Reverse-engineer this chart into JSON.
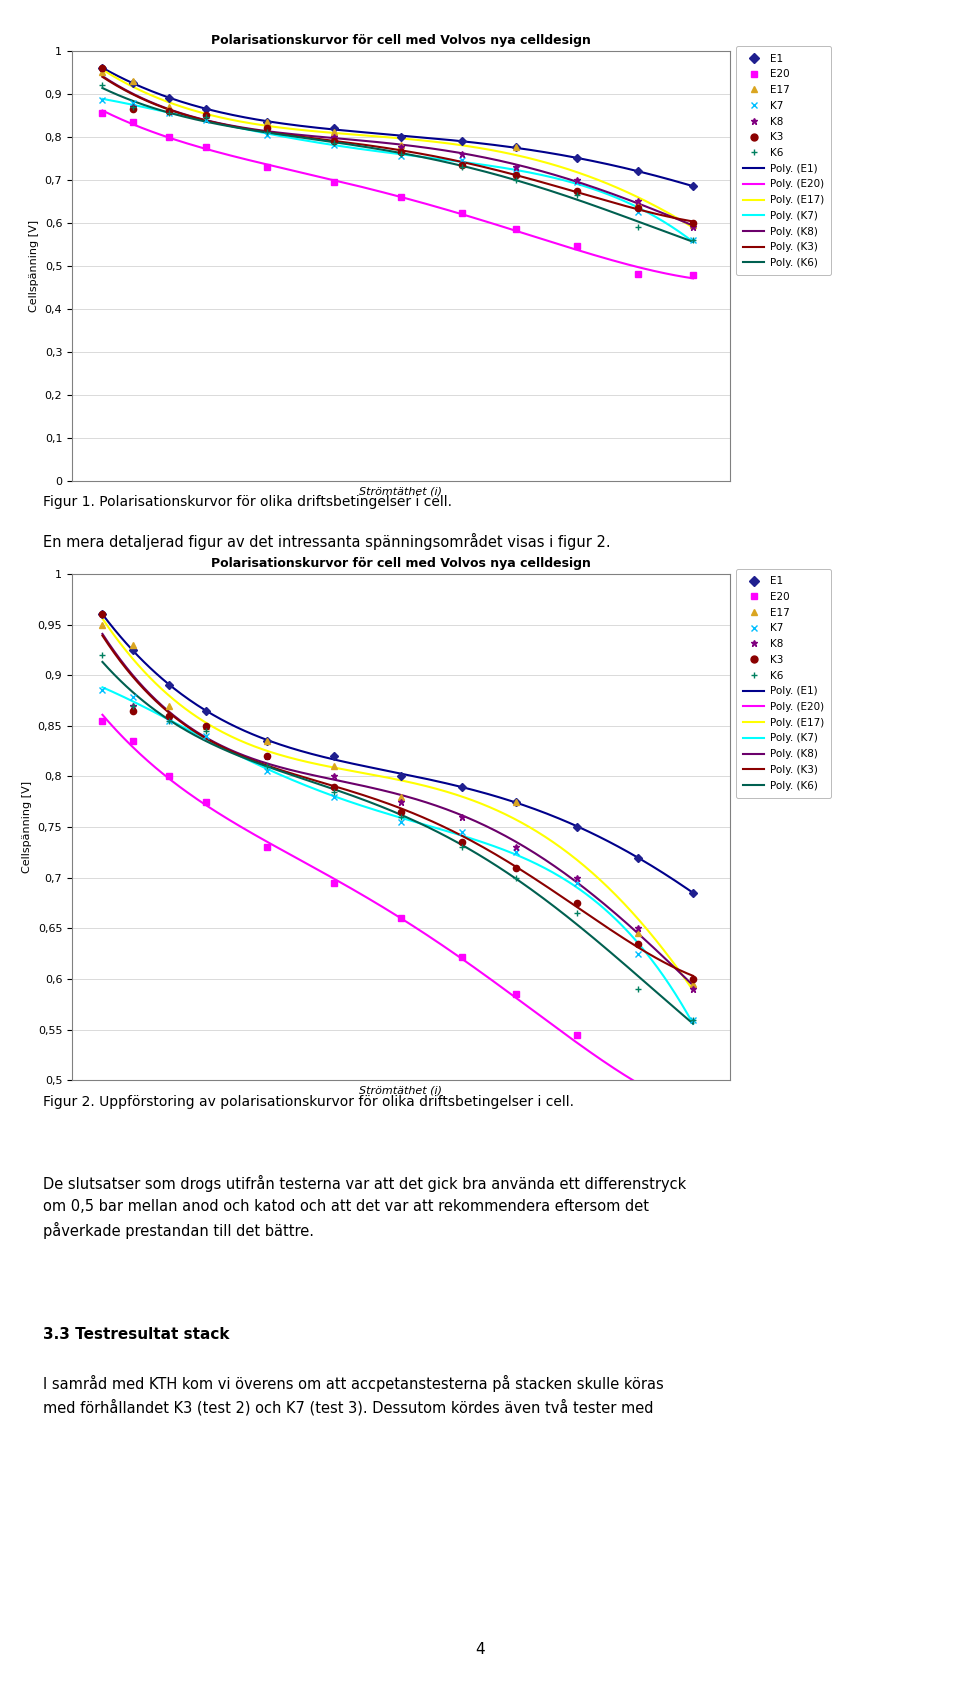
{
  "title": "Polarisationskurvor för cell med Volvos nya celldesign",
  "xlabel": "Strömtäthet (i)",
  "ylabel": "Cellspänning [V]",
  "fig1_caption": "Figur 1. Polarisationskurvor för olika driftsbetingelser i cell.",
  "fig2_caption": "Figur 2. Uppförstoring av polarisationskurvor för olika driftsbetingelser i cell.",
  "text1": "En mera detaljerad figur av det intressanta spänningsområdet visas i figur 2.",
  "text2": "De slutsatser som drogs utifrån testerna var att det gick bra använda ett differenstryck\nom 0,5 bar mellan anod och katod och att det var att rekommendera eftersom det\npåverkade prestandan till det bättre.",
  "text3_bold": "3.3 Testresultat stack",
  "text4": "I samråd med KTH kom vi överens om att accpetanstesterna på stacken skulle köras\nmed förhållandet K3 (test 2) och K7 (test 3). Dessutom kördes även två tester med",
  "series_order": [
    "E1",
    "E20",
    "E17",
    "K7",
    "K8",
    "K3",
    "K6"
  ],
  "markers": {
    "E1": "D",
    "E20": "s",
    "E17": "^",
    "K7": "x",
    "K8": "*",
    "K3": "o",
    "K6": "+"
  },
  "marker_colors": {
    "E1": "#1F1F8F",
    "E20": "#FF00FF",
    "E17": "#DAA520",
    "K7": "#00BFFF",
    "K8": "#800080",
    "K3": "#8B0000",
    "K6": "#008060"
  },
  "poly_colors": {
    "E1": "#00008B",
    "E20": "#FF00FF",
    "E17": "#FFFF00",
    "K7": "#00FFFF",
    "K8": "#6B006B",
    "K3": "#8B0000",
    "K6": "#006050"
  },
  "poly_labels": {
    "E1": "Poly. (E1)",
    "E20": "Poly. (E20)",
    "E17": "Poly. (E17)",
    "K7": "Poly. (K7)",
    "K8": "Poly. (K8)",
    "K3": "Poly. (K3)",
    "K6": "Poly. (K6)"
  },
  "x_data": {
    "E1": [
      0.05,
      0.1,
      0.16,
      0.22,
      0.32,
      0.43,
      0.54,
      0.64,
      0.73,
      0.83,
      0.93,
      1.02
    ],
    "E20": [
      0.05,
      0.1,
      0.16,
      0.22,
      0.32,
      0.43,
      0.54,
      0.64,
      0.73,
      0.83,
      0.93,
      1.02
    ],
    "E17": [
      0.05,
      0.1,
      0.16,
      0.22,
      0.32,
      0.43,
      0.54,
      0.73,
      0.93,
      1.02
    ],
    "K7": [
      0.05,
      0.1,
      0.16,
      0.22,
      0.32,
      0.43,
      0.54,
      0.64,
      0.73,
      0.83,
      0.93,
      1.02
    ],
    "K8": [
      0.05,
      0.1,
      0.16,
      0.22,
      0.32,
      0.43,
      0.54,
      0.64,
      0.73,
      0.83,
      0.93,
      1.02
    ],
    "K3": [
      0.05,
      0.1,
      0.16,
      0.22,
      0.32,
      0.43,
      0.54,
      0.64,
      0.73,
      0.83,
      0.93,
      1.02
    ],
    "K6": [
      0.05,
      0.1,
      0.16,
      0.22,
      0.32,
      0.43,
      0.54,
      0.64,
      0.73,
      0.83,
      0.93,
      1.02
    ]
  },
  "y_data": {
    "E1": [
      0.96,
      0.925,
      0.89,
      0.865,
      0.835,
      0.82,
      0.8,
      0.79,
      0.775,
      0.75,
      0.72,
      0.685
    ],
    "E20": [
      0.855,
      0.835,
      0.8,
      0.775,
      0.73,
      0.695,
      0.66,
      0.622,
      0.585,
      0.545,
      0.48,
      0.478
    ],
    "E17": [
      0.95,
      0.93,
      0.87,
      0.85,
      0.835,
      0.81,
      0.78,
      0.775,
      0.645,
      0.595
    ],
    "K7": [
      0.885,
      0.878,
      0.855,
      0.84,
      0.805,
      0.78,
      0.755,
      0.745,
      0.725,
      0.695,
      0.625,
      0.56
    ],
    "K8": [
      0.96,
      0.87,
      0.86,
      0.85,
      0.82,
      0.8,
      0.775,
      0.76,
      0.73,
      0.7,
      0.65,
      0.59
    ],
    "K3": [
      0.96,
      0.865,
      0.86,
      0.85,
      0.82,
      0.79,
      0.765,
      0.735,
      0.71,
      0.675,
      0.635,
      0.6
    ],
    "K6": [
      0.92,
      0.87,
      0.855,
      0.845,
      0.81,
      0.785,
      0.76,
      0.73,
      0.7,
      0.665,
      0.59,
      0.56
    ]
  },
  "fig1_ylim": [
    0,
    1.0
  ],
  "fig1_yticks": [
    0,
    0.1,
    0.2,
    0.3,
    0.4,
    0.5,
    0.6,
    0.7,
    0.8,
    0.9,
    1.0
  ],
  "fig2_ylim": [
    0.5,
    1.0
  ],
  "fig2_yticks": [
    0.5,
    0.55,
    0.6,
    0.65,
    0.7,
    0.75,
    0.8,
    0.85,
    0.9,
    0.95,
    1.0
  ],
  "poly_degree": 4,
  "chart_border_color": "#000000",
  "grid_color": "#cccccc"
}
